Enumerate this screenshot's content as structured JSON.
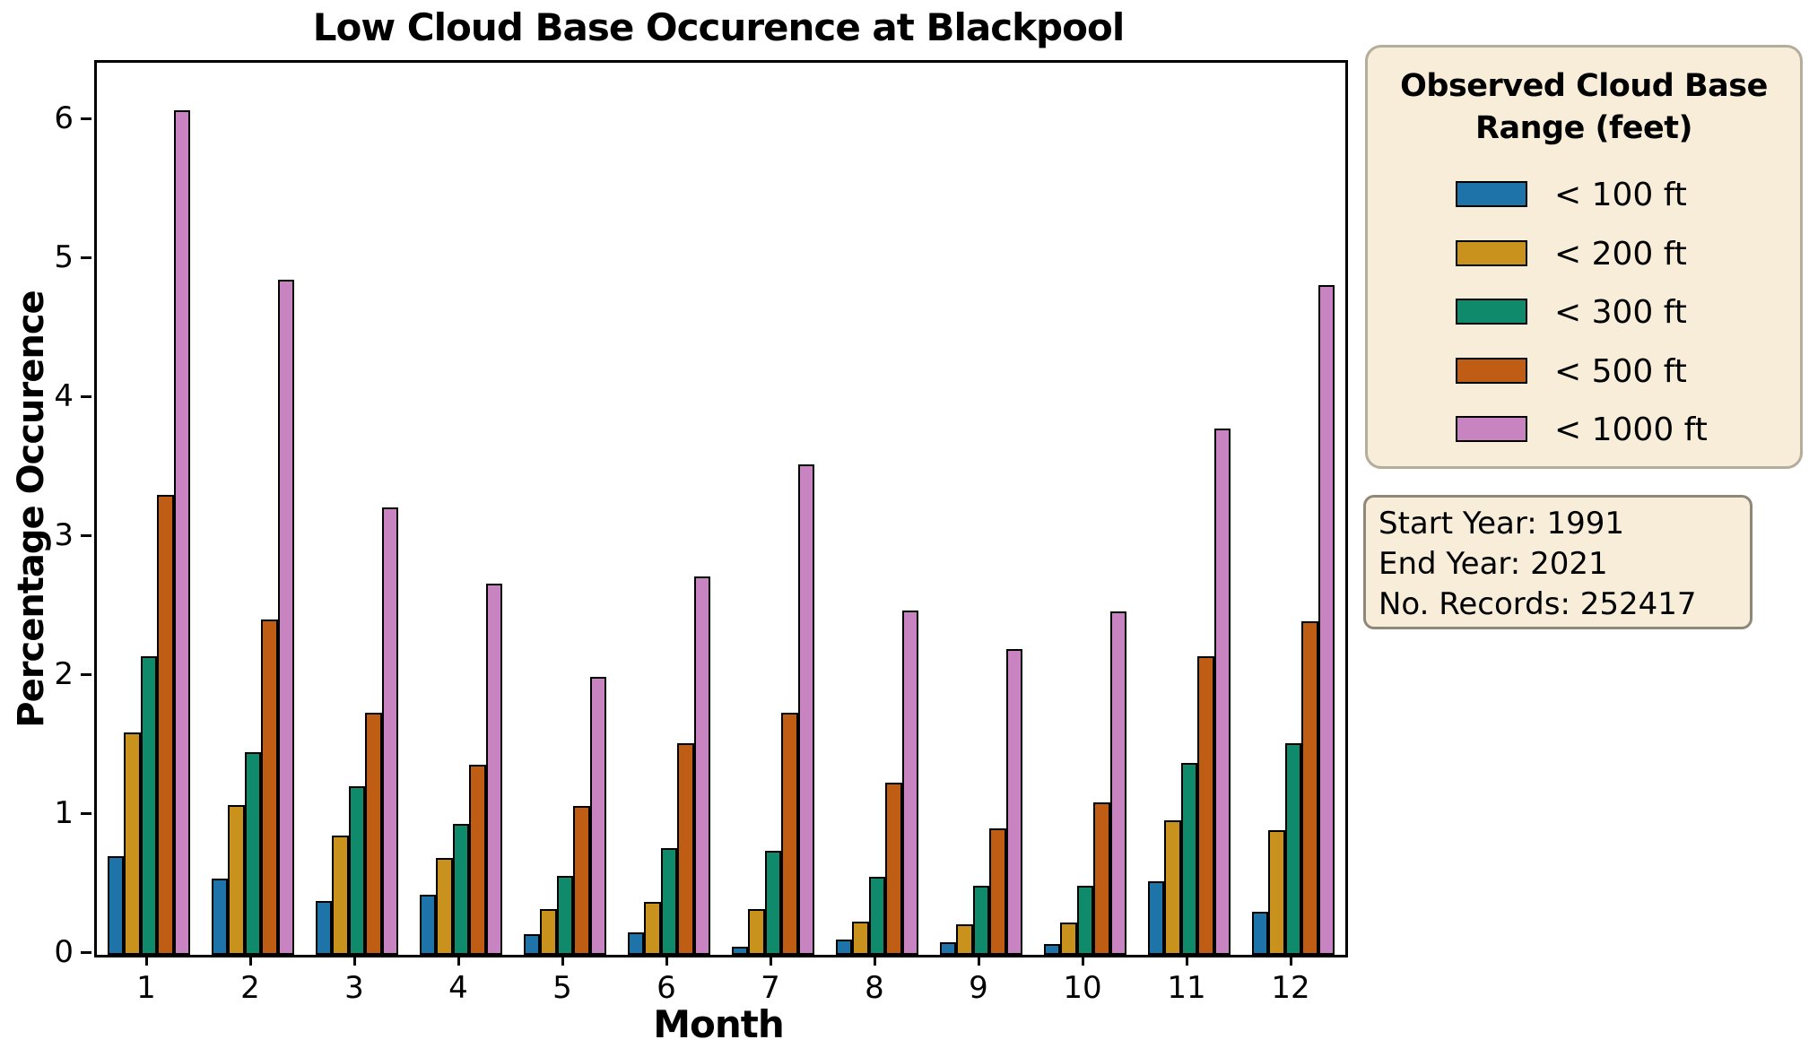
{
  "title": "Low Cloud Base Occurence at Blackpool",
  "axes": {
    "xlabel": "Month",
    "ylabel": "Percentage Occurence",
    "ytick_values": [
      0,
      1,
      2,
      3,
      4,
      5,
      6
    ],
    "xtick_labels": [
      "1",
      "2",
      "3",
      "4",
      "5",
      "6",
      "7",
      "8",
      "9",
      "10",
      "11",
      "12"
    ]
  },
  "legend": {
    "title": "Observed Cloud Base Range (feet)",
    "entries": [
      {
        "label": "< 100 ft",
        "color": "#1e73a9"
      },
      {
        "label": "< 200 ft",
        "color": "#c9921d"
      },
      {
        "label": "< 300 ft",
        "color": "#0f8a6a"
      },
      {
        "label": "< 500 ft",
        "color": "#c05d15"
      },
      {
        "label": "< 1000 ft",
        "color": "#c884c0"
      }
    ]
  },
  "infobox": {
    "lines": [
      "Start Year: 1991",
      "End Year: 2021",
      "No. Records: 252417"
    ]
  },
  "chart_data": {
    "type": "bar",
    "title": "Low Cloud Base Occurence at Blackpool",
    "xlabel": "Month",
    "ylabel": "Percentage Occurence",
    "categories": [
      1,
      2,
      3,
      4,
      5,
      6,
      7,
      8,
      9,
      10,
      11,
      12
    ],
    "series": [
      {
        "name": "< 100 ft",
        "color": "#1e73a9",
        "values": [
          0.71,
          0.55,
          0.39,
          0.43,
          0.15,
          0.16,
          0.06,
          0.11,
          0.09,
          0.08,
          0.53,
          0.31
        ]
      },
      {
        "name": "< 200 ft",
        "color": "#c9921d",
        "values": [
          1.6,
          1.08,
          0.86,
          0.7,
          0.33,
          0.38,
          0.33,
          0.24,
          0.22,
          0.23,
          0.97,
          0.9
        ]
      },
      {
        "name": "< 300 ft",
        "color": "#0f8a6a",
        "values": [
          2.15,
          1.46,
          1.21,
          0.94,
          0.57,
          0.77,
          0.75,
          0.56,
          0.5,
          0.5,
          1.38,
          1.52
        ]
      },
      {
        "name": "< 500 ft",
        "color": "#c05d15",
        "values": [
          3.31,
          2.41,
          1.74,
          1.37,
          1.07,
          1.52,
          1.74,
          1.24,
          0.91,
          1.1,
          2.15,
          2.4
        ]
      },
      {
        "name": "< 1000 ft",
        "color": "#c884c0",
        "values": [
          6.08,
          4.86,
          3.22,
          2.67,
          2.0,
          2.72,
          3.53,
          2.48,
          2.2,
          2.47,
          3.79,
          4.82
        ]
      }
    ],
    "ylim": [
      0,
      6.42
    ],
    "grid": false,
    "legend_position": "outside-right",
    "bar_edge_color": "#000000"
  }
}
